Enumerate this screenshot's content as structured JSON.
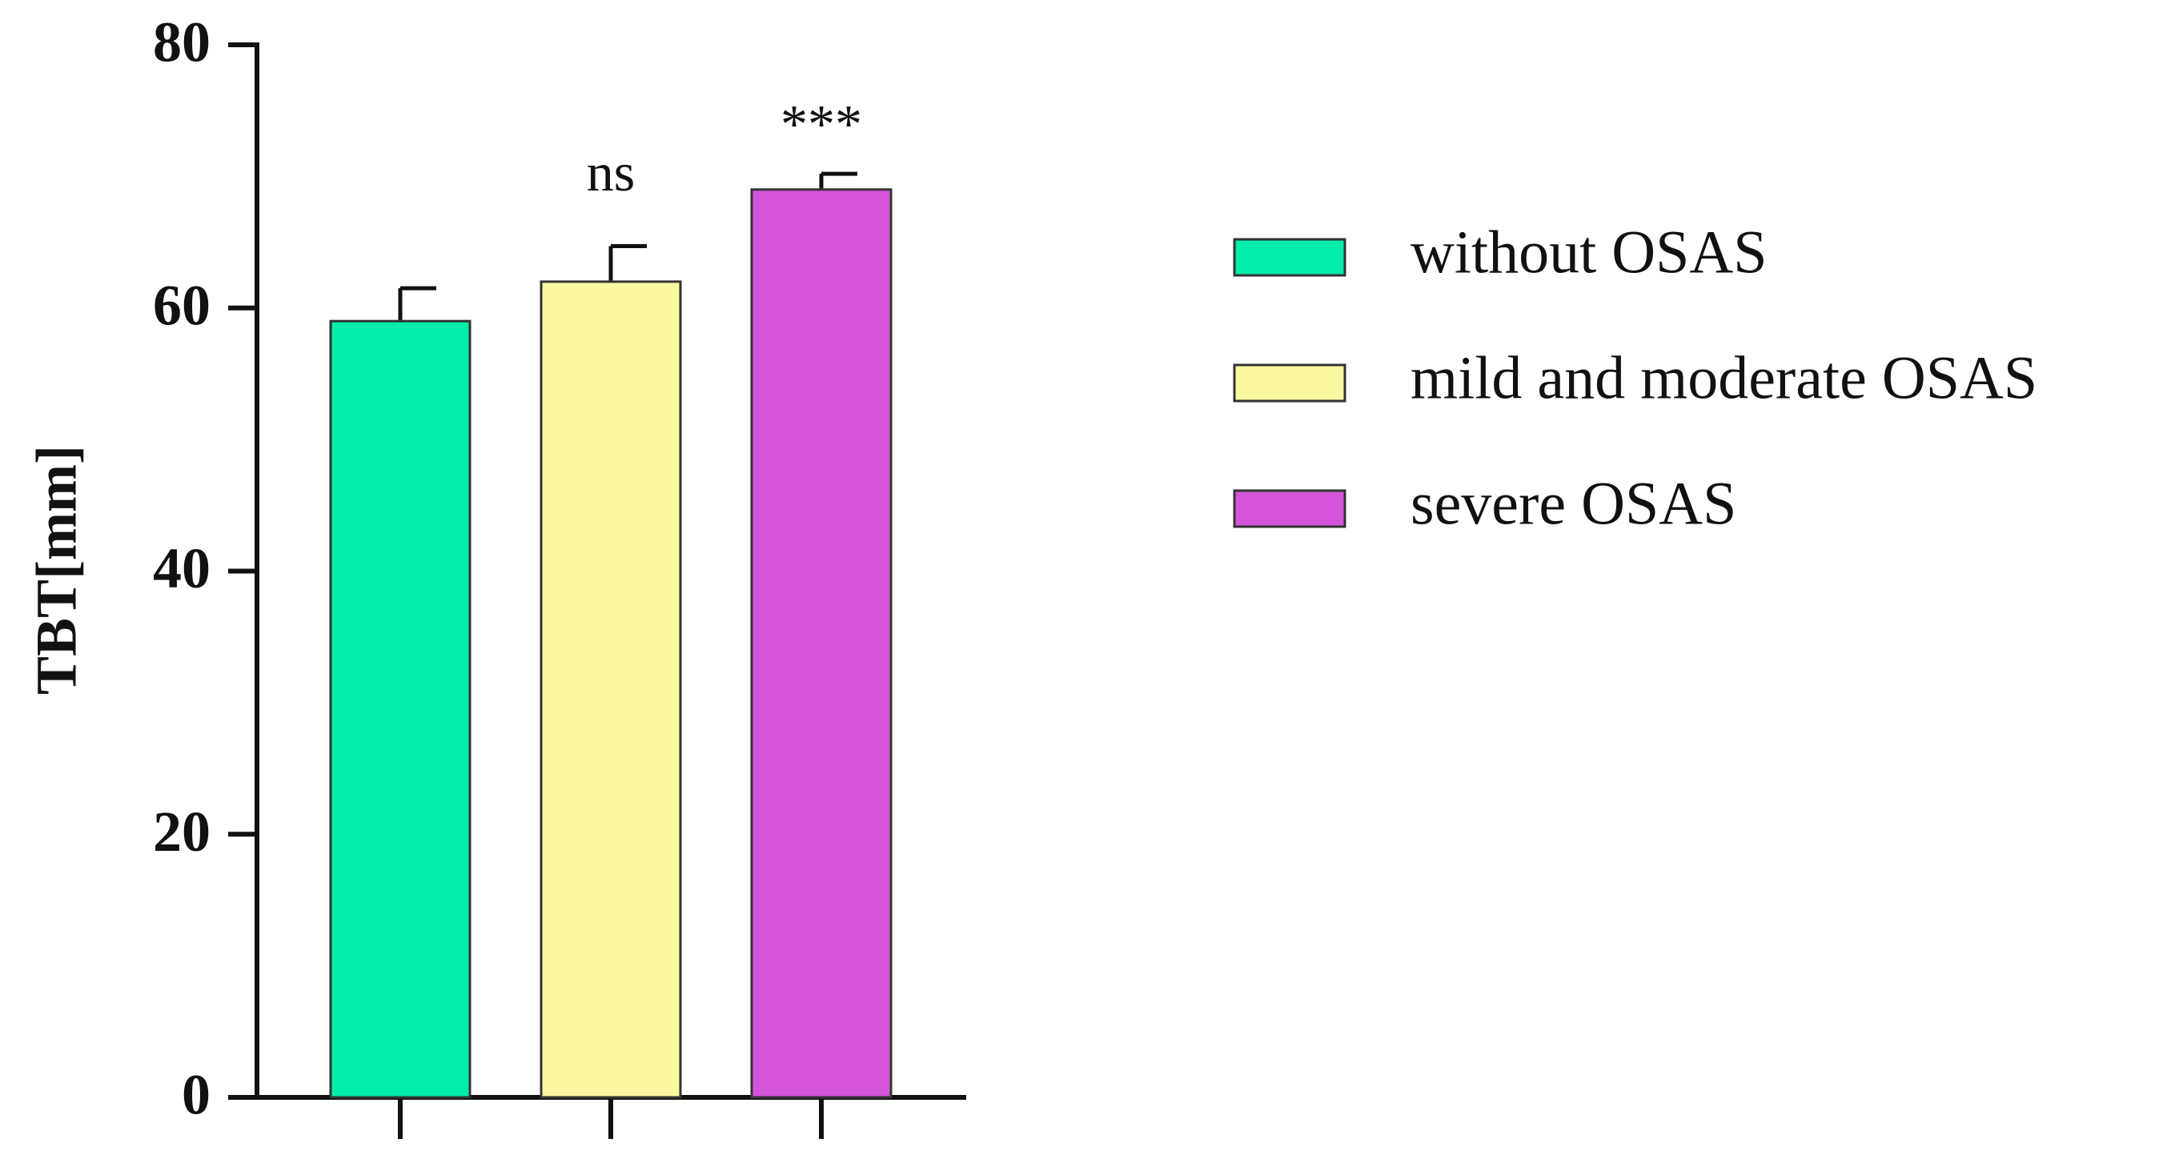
{
  "chart_data": {
    "type": "bar",
    "y_label": "TBT[mm]",
    "categories": [
      null,
      null,
      null
    ],
    "series": [
      {
        "name": "without OSAS",
        "color": "#00edaa",
        "values": [
          59,
          null,
          null
        ],
        "errors": [
          2.5,
          null,
          null
        ]
      },
      {
        "name": "mild and moderate OSAS",
        "color": "#faf8a0",
        "values": [
          null,
          62,
          null
        ],
        "errors": [
          null,
          2.7,
          null
        ],
        "annotation": "ns"
      },
      {
        "name": "severe OSAS",
        "color": "#d455d9",
        "values": [
          null,
          null,
          69
        ],
        "errors": [
          null,
          null,
          1.2
        ],
        "annotation": "***"
      }
    ],
    "ylim": [
      0,
      80
    ],
    "yticks": [
      0,
      20,
      40,
      60,
      80
    ],
    "grid": false
  }
}
